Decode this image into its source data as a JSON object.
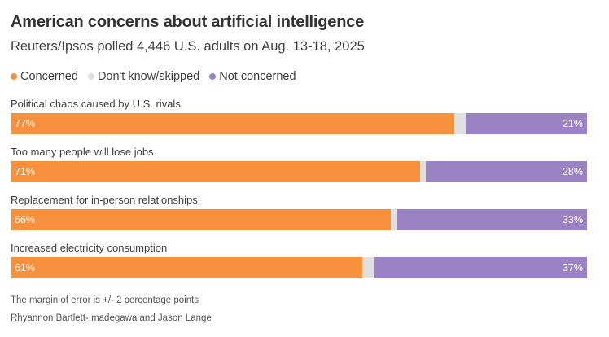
{
  "title": "American concerns about artificial intelligence",
  "subtitle": "Reuters/Ipsos polled 4,446 U.S. adults on Aug. 13-18, 2025",
  "colors": {
    "concerned": "#f7913d",
    "dontknow": "#e0e0e0",
    "notconcerned": "#9a82c4"
  },
  "legend": [
    {
      "label": "Concerned",
      "color": "#f7913d"
    },
    {
      "label": "Don't know/skipped",
      "color": "#e0e0e0"
    },
    {
      "label": "Not concerned",
      "color": "#9a82c4"
    }
  ],
  "chart_data": {
    "type": "bar",
    "orientation": "horizontal-stacked-100",
    "categories": [
      "Political chaos caused by U.S. rivals",
      "Too many people will lose jobs",
      "Replacement for in-person relationships",
      "Increased electricity consumption"
    ],
    "series": [
      {
        "name": "Concerned",
        "values": [
          77,
          71,
          66,
          61
        ],
        "labels": [
          "77%",
          "71%",
          "66%",
          "61%"
        ]
      },
      {
        "name": "Don't know/skipped",
        "values": [
          2,
          1,
          1,
          2
        ]
      },
      {
        "name": "Not concerned",
        "values": [
          21,
          28,
          33,
          37
        ],
        "labels": [
          "21%",
          "28%",
          "33%",
          "37%"
        ]
      }
    ],
    "xlim": [
      0,
      100
    ],
    "grid": false,
    "legend_position": "top-left"
  },
  "footer": {
    "note": "The margin of error is +/- 2 percentage points",
    "credit": "Rhyannon Bartlett-Imadegawa and Jason Lange"
  }
}
